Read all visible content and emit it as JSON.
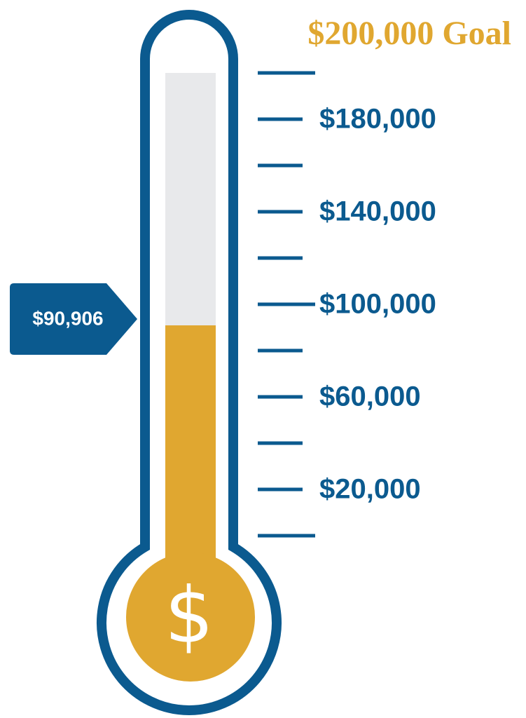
{
  "chart_data": {
    "type": "thermometer",
    "title": "$200,000 Goal",
    "values": [
      90906
    ],
    "value_labels": [
      "$90,906"
    ],
    "bulb_symbol": "$",
    "color": "#e0a730",
    "frame_color": "#0b5a8f",
    "title_color": "#e0a730",
    "ylim": [
      0,
      200000
    ],
    "yticks": [
      {
        "value": 0,
        "label": null
      },
      {
        "value": 20000,
        "label": "$20,000"
      },
      {
        "value": 40000,
        "label": null
      },
      {
        "value": 60000,
        "label": "$60,000"
      },
      {
        "value": 80000,
        "label": null
      },
      {
        "value": 100000,
        "label": "$100,000"
      },
      {
        "value": 120000,
        "label": null
      },
      {
        "value": 140000,
        "label": "$140,000"
      },
      {
        "value": 160000,
        "label": null
      },
      {
        "value": 180000,
        "label": "$180,000"
      },
      {
        "value": 200000,
        "label": null
      }
    ]
  }
}
